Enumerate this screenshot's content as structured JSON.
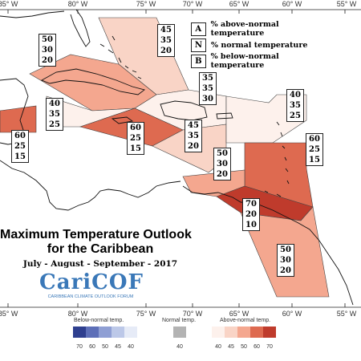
{
  "map": {
    "title_line1": "Maximum Temperature Outlook",
    "title_line2": "for the Caribbean",
    "subtitle": "July - August - September - 2017",
    "logo_text": "CariCOF",
    "logo_subtitle": "CARIBBEAN CLIMATE OUTLOOK FORUM",
    "lon_ticks_top": [
      "85° W",
      "80° W",
      "75° W",
      "70° W",
      "65° W",
      "60° W",
      "55° W"
    ],
    "lon_ticks_bottom": [
      "85° W",
      "80° W",
      "75° W",
      "70° W",
      "65° W",
      "60° W",
      "55° W"
    ]
  },
  "legend_key": [
    {
      "letter": "A",
      "text": "% above-normal temperature"
    },
    {
      "letter": "N",
      "text": "% normal temperature"
    },
    {
      "letter": "B",
      "text": "% below-normal temperature"
    }
  ],
  "regions": [
    {
      "id": "bahamas",
      "values": [
        "45",
        "35",
        "20"
      ],
      "color": "#f9d4c6"
    },
    {
      "id": "cuba",
      "values": [
        "50",
        "30",
        "20"
      ],
      "color": "#f4a78f"
    },
    {
      "id": "hispaniola",
      "values": [
        "35",
        "35",
        "30"
      ],
      "color": "#fdf1ec"
    },
    {
      "id": "west-caribbean",
      "values": [
        "40",
        "35",
        "25"
      ],
      "color": "#fdf1ec"
    },
    {
      "id": "belize",
      "values": [
        "60",
        "25",
        "15"
      ],
      "color": "#de6a50"
    },
    {
      "id": "jamaica",
      "values": [
        "60",
        "25",
        "15"
      ],
      "color": "#de6a50"
    },
    {
      "id": "east-caribbean-sea",
      "values": [
        "45",
        "35",
        "20"
      ],
      "color": "#f9d4c6"
    },
    {
      "id": "northern-lesser-antilles",
      "values": [
        "40",
        "35",
        "25"
      ],
      "color": "#fdf1ec"
    },
    {
      "id": "central-lesser-antilles",
      "values": [
        "60",
        "25",
        "15"
      ],
      "color": "#de6a50"
    },
    {
      "id": "abc-islands",
      "values": [
        "50",
        "30",
        "20"
      ],
      "color": "#f4a78f"
    },
    {
      "id": "southern-caribbean",
      "values": [
        "70",
        "20",
        "10"
      ],
      "color": "#bf3b2c"
    },
    {
      "id": "guianas",
      "values": [
        "50",
        "30",
        "20"
      ],
      "color": "#f4a78f"
    }
  ],
  "colorbar": {
    "below_label": "Below-normal temp.",
    "normal_label": "Normal temp.",
    "above_label": "Above-normal temp.",
    "below_ticks": [
      "70",
      "60",
      "50",
      "45",
      "40"
    ],
    "normal_ticks": [
      "40"
    ],
    "above_ticks": [
      "40",
      "45",
      "50",
      "60",
      "70"
    ],
    "below_colors": [
      "#2e3f8f",
      "#5d6fb8",
      "#8f9fd4",
      "#bcc8e8",
      "#e6ebf7"
    ],
    "normal_color": "#b3b3b3",
    "above_colors": [
      "#fdf1ec",
      "#f9d4c6",
      "#f4a78f",
      "#de6a50",
      "#bf3b2c"
    ]
  }
}
